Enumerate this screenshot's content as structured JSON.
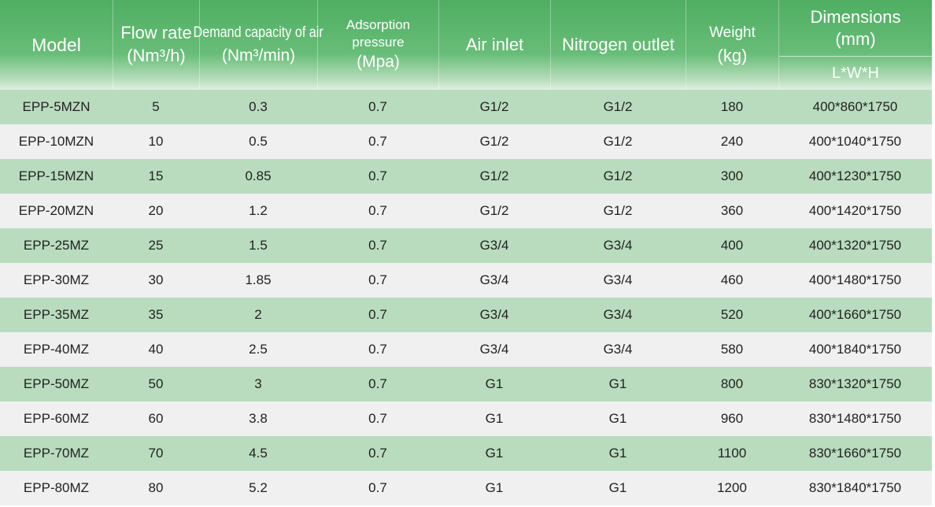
{
  "headers": {
    "model": "Model",
    "flow_rate": [
      "Flow rate",
      "(Nm³/h)"
    ],
    "demand": [
      "Demand capacity of air",
      "(Nm³/min)"
    ],
    "adsorption": [
      "Adsorption",
      "pressure",
      "(Mpa)"
    ],
    "air_inlet": "Air inlet",
    "nitrogen_outlet": "Nitrogen outlet",
    "weight": [
      "Weight",
      "(kg)"
    ],
    "dimensions": [
      "Dimensions",
      "(mm)"
    ],
    "dimensions_sub": "L*W*H"
  },
  "rows": [
    [
      "EPP-5MZN",
      "5",
      "0.3",
      "0.7",
      "G1/2",
      "G1/2",
      "180",
      "400*860*1750"
    ],
    [
      "EPP-10MZN",
      "10",
      "0.5",
      "0.7",
      "G1/2",
      "G1/2",
      "240",
      "400*1040*1750"
    ],
    [
      "EPP-15MZN",
      "15",
      "0.85",
      "0.7",
      "G1/2",
      "G1/2",
      "300",
      "400*1230*1750"
    ],
    [
      "EPP-20MZN",
      "20",
      "1.2",
      "0.7",
      "G1/2",
      "G1/2",
      "360",
      "400*1420*1750"
    ],
    [
      "EPP-25MZ",
      "25",
      "1.5",
      "0.7",
      "G3/4",
      "G3/4",
      "400",
      "400*1320*1750"
    ],
    [
      "EPP-30MZ",
      "30",
      "1.85",
      "0.7",
      "G3/4",
      "G3/4",
      "460",
      "400*1480*1750"
    ],
    [
      "EPP-35MZ",
      "35",
      "2",
      "0.7",
      "G3/4",
      "G3/4",
      "520",
      "400*1660*1750"
    ],
    [
      "EPP-40MZ",
      "40",
      "2.5",
      "0.7",
      "G3/4",
      "G3/4",
      "580",
      "400*1840*1750"
    ],
    [
      "EPP-50MZ",
      "50",
      "3",
      "0.7",
      "G1",
      "G1",
      "800",
      "830*1320*1750"
    ],
    [
      "EPP-60MZ",
      "60",
      "3.8",
      "0.7",
      "G1",
      "G1",
      "960",
      "830*1480*1750"
    ],
    [
      "EPP-70MZ",
      "70",
      "4.5",
      "0.7",
      "G1",
      "G1",
      "1100",
      "830*1660*1750"
    ],
    [
      "EPP-80MZ",
      "80",
      "5.2",
      "0.7",
      "G1",
      "G1",
      "1200",
      "830*1840*1750"
    ]
  ],
  "colors": {
    "header_green": "#4fae62",
    "row_green": "#b9dcbe",
    "row_grey": "#f0f0f0"
  }
}
